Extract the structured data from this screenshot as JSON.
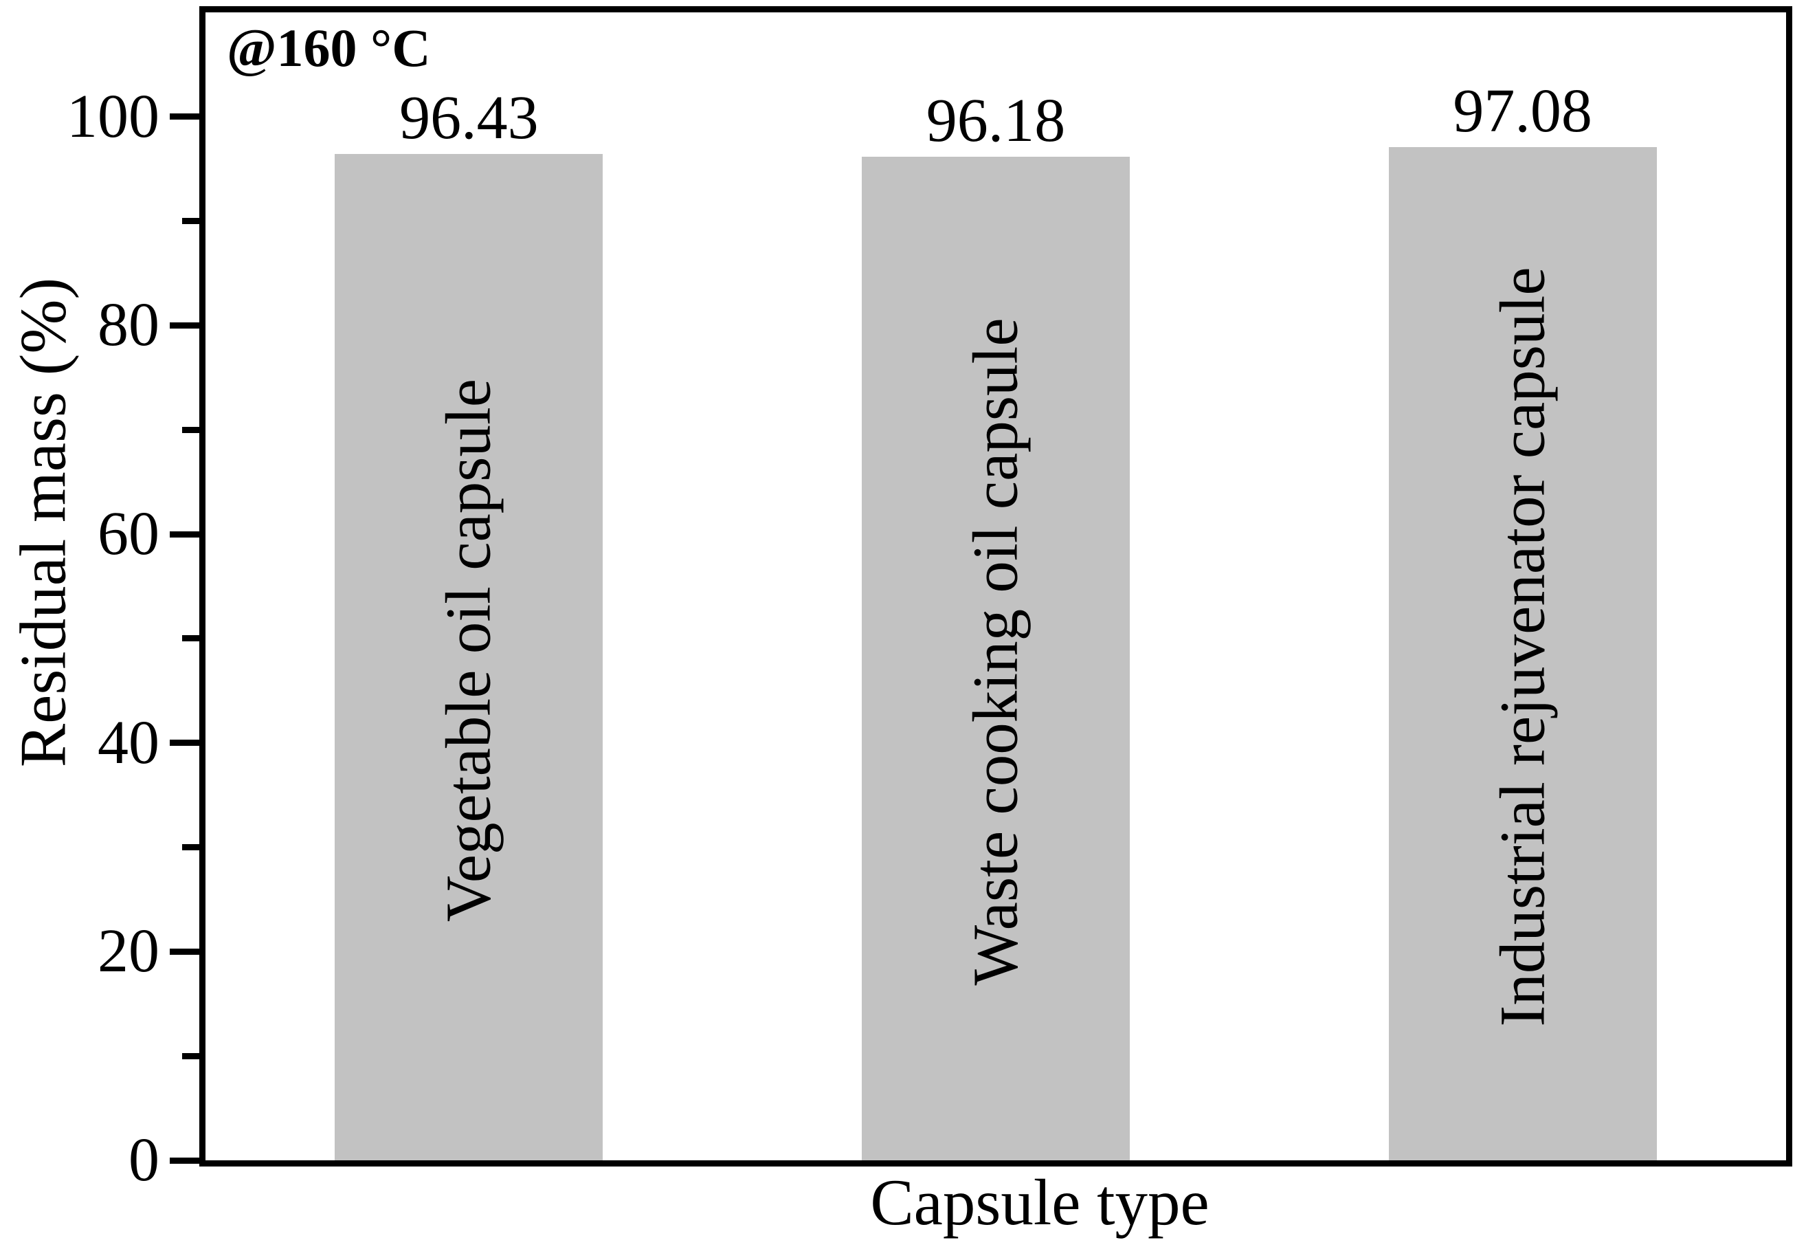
{
  "figure": {
    "annotation": "@160 °C",
    "xlabel": "Capsule type",
    "ylabel": "Residual mass (%)"
  },
  "chart_data": {
    "type": "bar",
    "title": "",
    "annotation": "@160 °C",
    "xlabel": "Capsule type",
    "ylabel": "Residual mass (%)",
    "categories": [
      "Vegetable oil capsule",
      "Waste cooking oil capsule",
      "Industrial rejuvenator capsule"
    ],
    "values": [
      96.43,
      96.18,
      97.08
    ],
    "value_labels": [
      "96.43",
      "96.18",
      "97.08"
    ],
    "ylim": [
      0,
      110
    ],
    "yticks_major": [
      0,
      20,
      40,
      60,
      80,
      100
    ],
    "yticks_minor": [
      10,
      30,
      50,
      70,
      90
    ],
    "bar_color": "#c2c2c2",
    "axis_color": "#000000",
    "background_color": "#ffffff",
    "grid": false,
    "legend": null
  }
}
